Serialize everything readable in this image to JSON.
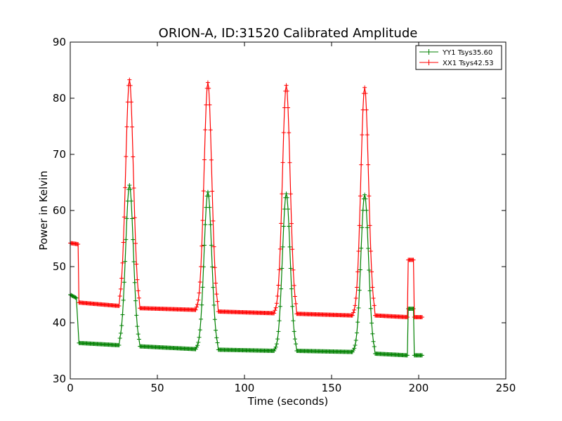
{
  "chart_data": {
    "type": "line",
    "title": "ORION-A, ID:31520 Calibrated Amplitude",
    "xlabel": "Time (seconds)",
    "ylabel": "Power in Kelvin",
    "xlim": [
      0,
      250
    ],
    "ylim": [
      30,
      90
    ],
    "xticks": [
      "0",
      "50",
      "100",
      "150",
      "200",
      "250"
    ],
    "yticks": [
      "30",
      "40",
      "50",
      "60",
      "70",
      "80",
      "90"
    ],
    "grid": false,
    "legend_position": "top-right",
    "series": [
      {
        "name": "YY1 Tsys35.60",
        "color": "#008000",
        "baseline_segments": [
          {
            "t_start": 0,
            "t_end": 3.5,
            "level_start": 45.0,
            "level_end": 44.4
          },
          {
            "t_start": 5,
            "t_end": 28,
            "level_start": 36.4,
            "level_end": 36.0
          },
          {
            "t_start": 40,
            "t_end": 72,
            "level_start": 35.8,
            "level_end": 35.3
          },
          {
            "t_start": 85,
            "t_end": 117,
            "level_start": 35.2,
            "level_end": 35.0
          },
          {
            "t_start": 130,
            "t_end": 162,
            "level_start": 35.0,
            "level_end": 34.8
          },
          {
            "t_start": 175,
            "t_end": 193.5,
            "level_start": 34.5,
            "level_end": 34.2
          },
          {
            "t_start": 194,
            "t_end": 197,
            "level_start": 42.5,
            "level_end": 42.5
          },
          {
            "t_start": 197.5,
            "t_end": 202,
            "level_start": 34.2,
            "level_end": 34.2
          }
        ],
        "peaks": [
          {
            "t": 34,
            "value": 64.5
          },
          {
            "t": 79,
            "value": 63.3
          },
          {
            "t": 124,
            "value": 63.0
          },
          {
            "t": 169,
            "value": 62.8
          }
        ]
      },
      {
        "name": "XX1 Tsys42.53",
        "color": "#ff0000",
        "baseline_segments": [
          {
            "t_start": 0,
            "t_end": 4.5,
            "level_start": 54.2,
            "level_end": 54.0
          },
          {
            "t_start": 5,
            "t_end": 28,
            "level_start": 43.6,
            "level_end": 43.0
          },
          {
            "t_start": 40,
            "t_end": 72,
            "level_start": 42.6,
            "level_end": 42.3
          },
          {
            "t_start": 85,
            "t_end": 117,
            "level_start": 42.0,
            "level_end": 41.7
          },
          {
            "t_start": 130,
            "t_end": 162,
            "level_start": 41.6,
            "level_end": 41.3
          },
          {
            "t_start": 175,
            "t_end": 193.5,
            "level_start": 41.3,
            "level_end": 41.0
          },
          {
            "t_start": 194,
            "t_end": 197,
            "level_start": 51.2,
            "level_end": 51.2
          },
          {
            "t_start": 197.5,
            "t_end": 202,
            "level_start": 41.0,
            "level_end": 41.0
          }
        ],
        "peaks": [
          {
            "t": 34,
            "value": 83.3
          },
          {
            "t": 79,
            "value": 82.8
          },
          {
            "t": 124,
            "value": 82.3
          },
          {
            "t": 169,
            "value": 81.9
          }
        ]
      }
    ]
  }
}
